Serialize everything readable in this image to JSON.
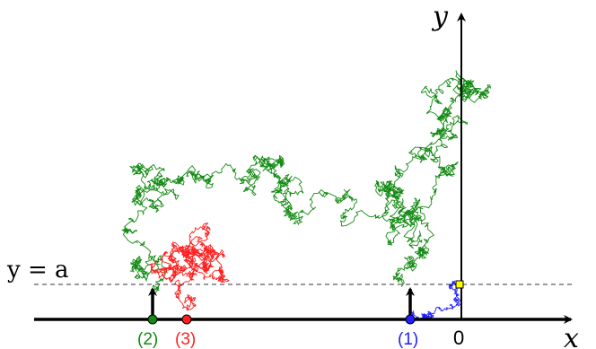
{
  "axes": {
    "x_label": "x",
    "y_label": "y",
    "origin_label": "0"
  },
  "level_line": {
    "label": "y = a"
  },
  "markers": [
    {
      "label": "(1)",
      "color": "#1f1fff",
      "has_arrow": true
    },
    {
      "label": "(2)",
      "color": "#138a13",
      "has_arrow": true
    },
    {
      "label": "(3)",
      "color": "#ff1f1f",
      "has_arrow": false
    }
  ],
  "paths": [
    {
      "color": "#1f1fff",
      "description_id": "path-1"
    },
    {
      "color": "#138a13",
      "description_id": "path-2"
    },
    {
      "color": "#ff1f1f",
      "description_id": "path-3"
    }
  ],
  "target_point": {
    "color": "#ffff00"
  }
}
